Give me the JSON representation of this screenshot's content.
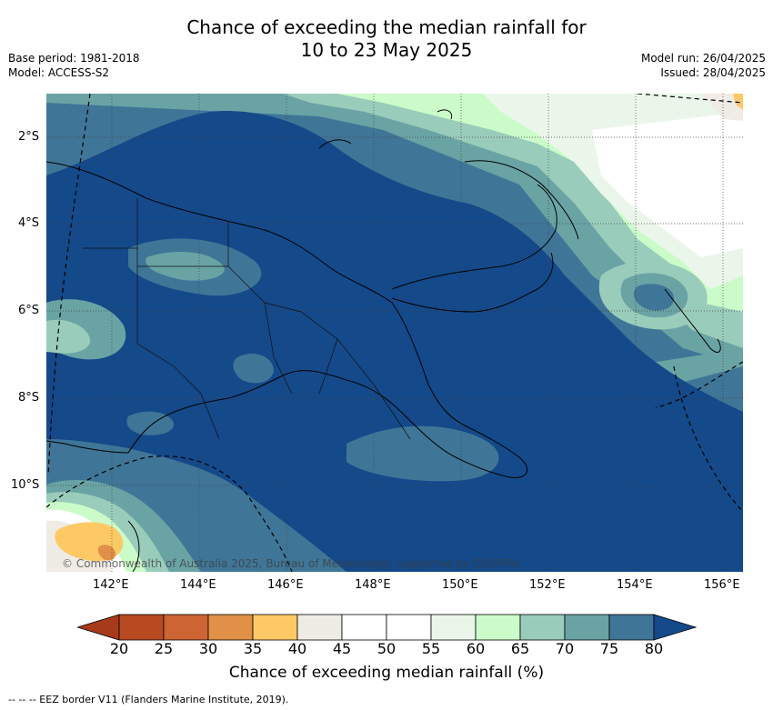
{
  "title_line1": "Chance of exceeding the median rainfall for",
  "title_line2": "10 to 23 May 2025",
  "base_period": "Base period: 1981-2018",
  "model": "Model: ACCESS-S2",
  "model_run": "Model run: 26/04/2025",
  "issued": "Issued: 28/04/2025",
  "copyright": "© Commonwealth of Australia 2025, Bureau of Meteorology, supported by COSPPac",
  "lat_ticks": [
    "2°S",
    "4°S",
    "6°S",
    "8°S",
    "10°S"
  ],
  "lon_ticks": [
    "142°E",
    "144°E",
    "146°E",
    "148°E",
    "150°E",
    "152°E",
    "154°E",
    "156°E"
  ],
  "colorbar": {
    "label": "Chance of exceeding median rainfall (%)",
    "ticks": [
      "20",
      "25",
      "30",
      "35",
      "40",
      "45",
      "50",
      "55",
      "60",
      "65",
      "70",
      "75",
      "80"
    ],
    "colors": [
      "#a83a1c",
      "#b84a22",
      "#cc6533",
      "#e09047",
      "#fdc965",
      "#efebe5",
      "#ffffff",
      "#ffffff",
      "#ebf6ea",
      "#cbfbc9",
      "#9accbb",
      "#6aa3a4",
      "#3f7597",
      "#14498a"
    ]
  },
  "footnote": "-- -- -- EEZ border V11 (Flanders Marine Institute, 2019).",
  "colors": {
    "deep_blue": "#14498a",
    "mid_blue": "#3f7597",
    "teal": "#6aa3a4",
    "light_teal": "#9accbb",
    "light_green": "#cbfbc9",
    "pale_green": "#ebf6ea",
    "orange": "#fdc965",
    "dark_orange": "#e09047"
  }
}
